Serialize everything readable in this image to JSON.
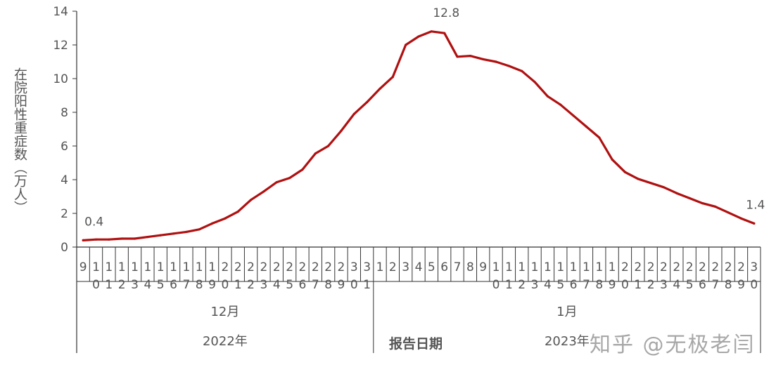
{
  "chart_data": {
    "type": "line",
    "title": "",
    "ylabel": "在院阳性重症数（万人）",
    "xlabel": "报告日期",
    "ylim": [
      0,
      14
    ],
    "yticks": [
      0,
      2,
      4,
      6,
      8,
      10,
      12,
      14
    ],
    "grid": false,
    "legend": "none",
    "line_color": "#b01010",
    "x": [
      "9",
      "10",
      "11",
      "12",
      "13",
      "14",
      "15",
      "16",
      "17",
      "18",
      "19",
      "20",
      "21",
      "22",
      "23",
      "24",
      "25",
      "26",
      "27",
      "28",
      "29",
      "30",
      "31",
      "1",
      "2",
      "3",
      "4",
      "5",
      "6",
      "7",
      "8",
      "9",
      "10",
      "11",
      "12",
      "13",
      "14",
      "15",
      "16",
      "17",
      "18",
      "19",
      "20",
      "21",
      "22",
      "23",
      "24",
      "25",
      "26",
      "27",
      "28",
      "29",
      "30"
    ],
    "values": [
      0.4,
      0.45,
      0.45,
      0.5,
      0.5,
      0.6,
      0.7,
      0.8,
      0.9,
      1.05,
      1.4,
      1.7,
      2.1,
      2.8,
      3.3,
      3.85,
      4.1,
      4.6,
      5.55,
      6.0,
      6.9,
      7.9,
      8.6,
      9.4,
      10.1,
      12.0,
      12.5,
      12.8,
      12.7,
      11.3,
      11.35,
      11.15,
      11.0,
      10.75,
      10.45,
      9.8,
      8.95,
      8.45,
      7.8,
      7.15,
      6.5,
      5.2,
      4.45,
      4.05,
      3.8,
      3.55,
      3.2,
      2.9,
      2.6,
      2.4,
      2.05,
      1.7,
      1.4
    ],
    "annotations": [
      {
        "index": 0,
        "text": "0.4"
      },
      {
        "index": 27,
        "text": "12.8"
      },
      {
        "index": 52,
        "text": "1.4"
      }
    ],
    "groups": [
      {
        "month": "12月",
        "year": "2022年",
        "start": 0,
        "count": 23
      },
      {
        "month": "1月",
        "year": "2023年",
        "start": 23,
        "count": 30
      }
    ]
  },
  "watermark": "知乎 @无极老闫"
}
